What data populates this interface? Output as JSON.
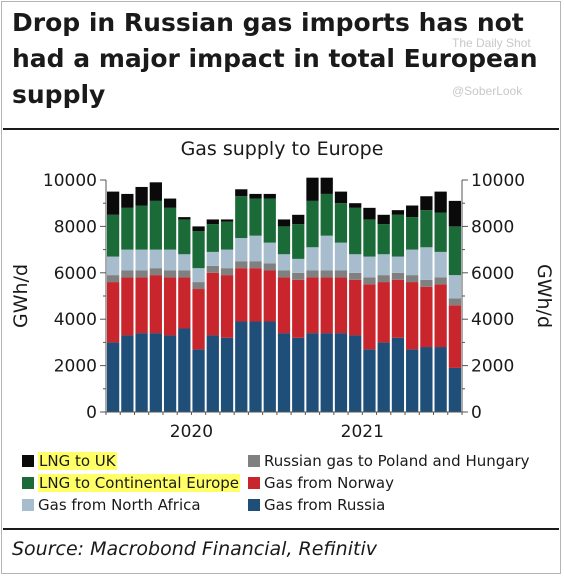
{
  "headline": "Drop in Russian gas imports has not had a major impact in total European supply",
  "watermarks": [
    "The Daily Shot",
    "@SoberLook"
  ],
  "source": "Source: Macrobond Financial, Refinitiv",
  "chart_data": {
    "type": "bar",
    "stacked": true,
    "title": "Gas supply to Europe",
    "ylabel": "GWh/d",
    "ylabel_right": "GWh/d",
    "ylim": [
      0,
      10000
    ],
    "yticks": [
      0,
      2000,
      4000,
      6000,
      8000,
      10000
    ],
    "x_tick_labels": [
      {
        "label": "2020",
        "index": 5.5
      },
      {
        "label": "2021",
        "index": 17.5
      }
    ],
    "categories": [
      "",
      "",
      "",
      "",
      "",
      "",
      "",
      "",
      "",
      "",
      "",
      "",
      "",
      "",
      "",
      "",
      "",
      "",
      "",
      "",
      "",
      "",
      "",
      "",
      ""
    ],
    "series": [
      {
        "name": "Gas from Russia",
        "color": "#1f4e79",
        "highlight": false,
        "values": [
          3000,
          3300,
          3400,
          3400,
          3300,
          3600,
          2700,
          3300,
          3200,
          3900,
          3900,
          3900,
          3400,
          3200,
          3400,
          3400,
          3400,
          3300,
          2700,
          3000,
          3200,
          2700,
          2800,
          2800,
          1900
        ]
      },
      {
        "name": "Gas from Norway",
        "color": "#c8252c",
        "highlight": false,
        "values": [
          2600,
          2500,
          2400,
          2500,
          2500,
          2200,
          2600,
          2700,
          2700,
          2300,
          2300,
          2200,
          2400,
          2500,
          2400,
          2400,
          2400,
          2400,
          2800,
          2600,
          2500,
          2900,
          2600,
          2700,
          2700
        ]
      },
      {
        "name": "Russian gas to Poland and Hungary",
        "color": "#808080",
        "highlight": false,
        "values": [
          300,
          300,
          300,
          300,
          300,
          300,
          300,
          300,
          300,
          300,
          300,
          300,
          300,
          300,
          300,
          300,
          300,
          300,
          300,
          300,
          300,
          300,
          300,
          300,
          300
        ]
      },
      {
        "name": "Gas from North Africa",
        "color": "#a7bccd",
        "highlight": false,
        "values": [
          800,
          900,
          900,
          800,
          900,
          700,
          600,
          600,
          800,
          1000,
          1100,
          900,
          700,
          600,
          1000,
          1500,
          1200,
          800,
          900,
          900,
          700,
          1100,
          1400,
          1100,
          1000
        ]
      },
      {
        "name": "LNG to Continental Europe",
        "color": "#1b6b39",
        "highlight": true,
        "values": [
          1800,
          1800,
          1900,
          2100,
          1800,
          1500,
          1600,
          1200,
          1200,
          1800,
          1600,
          1900,
          1200,
          1500,
          2000,
          1800,
          1700,
          2000,
          1600,
          1300,
          1800,
          1400,
          1600,
          1700,
          2100
        ]
      },
      {
        "name": "LNG to UK",
        "color": "#0a0a0a",
        "highlight": true,
        "values": [
          1000,
          600,
          800,
          800,
          400,
          100,
          200,
          200,
          100,
          300,
          200,
          200,
          300,
          400,
          1000,
          700,
          500,
          200,
          500,
          400,
          200,
          500,
          600,
          900,
          1100
        ]
      }
    ],
    "legend_placement": "bottom",
    "grid": false
  }
}
